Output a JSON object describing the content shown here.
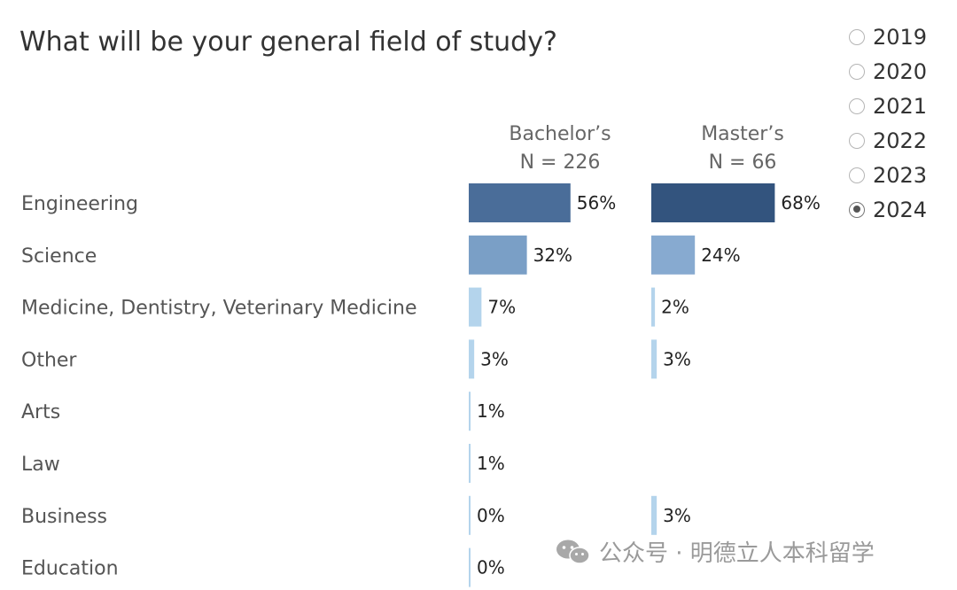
{
  "chart_data": {
    "type": "bar",
    "title": "What will be your general field of study?",
    "orientation": "horizontal",
    "categories": [
      "Engineering",
      "Science",
      "Medicine, Dentistry, Veterinary Medicine",
      "Other",
      "Arts",
      "Law",
      "Business",
      "Education"
    ],
    "series": [
      {
        "name": "Bachelor’s",
        "sample": "N = 226",
        "values": [
          56,
          32,
          7,
          3,
          1,
          1,
          0,
          0
        ],
        "labels": [
          "56%",
          "32%",
          "7%",
          "3%",
          "1%",
          "1%",
          "0%",
          "0%"
        ]
      },
      {
        "name": "Master’s",
        "sample": "N = 66",
        "values": [
          68,
          24,
          2,
          3,
          null,
          null,
          3,
          null
        ],
        "labels": [
          "68%",
          "24%",
          "2%",
          "3%",
          null,
          null,
          "3%",
          null
        ]
      }
    ],
    "xlim": [
      0,
      100
    ],
    "grid": false,
    "colors": {
      "bachelors": [
        "#4a6d99",
        "#7a9fc6",
        "#b4d4ec",
        "#b4d4ec",
        "#b4d4ec",
        "#b4d4ec",
        "#b4d4ec",
        "#b4d4ec"
      ],
      "masters": [
        "#33547e",
        "#87aad0",
        "#b4d4ec",
        "#b4d4ec",
        null,
        null,
        "#b4d4ec",
        null
      ]
    }
  },
  "year_filter": {
    "options": [
      "2019",
      "2020",
      "2021",
      "2022",
      "2023",
      "2024"
    ],
    "selected": "2024"
  },
  "watermark": {
    "text": "公众号 · 明德立人本科留学",
    "icon": "wechat-icon"
  }
}
